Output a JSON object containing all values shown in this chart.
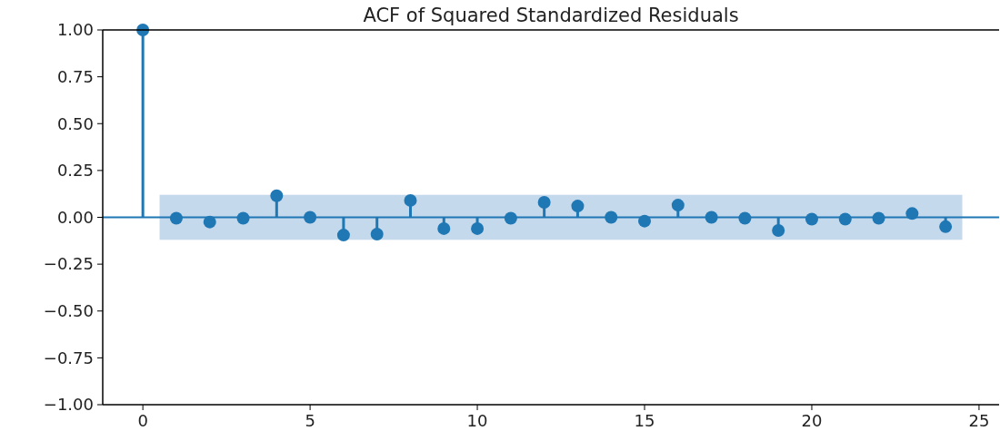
{
  "chart_data": {
    "type": "lollipop",
    "title": "ACF of Squared Standardized Residuals",
    "x": [
      0,
      1,
      2,
      3,
      4,
      5,
      6,
      7,
      8,
      9,
      10,
      11,
      12,
      13,
      14,
      15,
      16,
      17,
      18,
      19,
      20,
      21,
      22,
      23,
      24
    ],
    "values": [
      1.0,
      -0.005,
      -0.025,
      -0.005,
      0.115,
      0.0,
      -0.095,
      -0.09,
      0.09,
      -0.06,
      -0.06,
      -0.005,
      0.08,
      0.06,
      0.0,
      -0.02,
      0.065,
      0.0,
      -0.005,
      -0.07,
      -0.01,
      -0.01,
      -0.005,
      0.02,
      -0.05
    ],
    "color": "#1f77b4",
    "xlim": [
      -1.2,
      25.6
    ],
    "xticks": [
      0,
      5,
      10,
      15,
      20,
      25
    ],
    "ylim": [
      -1.0,
      1.0
    ],
    "yticks": [
      {
        "value": -1,
        "label": "−1.00"
      },
      {
        "value": -0.75,
        "label": "−0.75"
      },
      {
        "value": -0.5,
        "label": "−0.50"
      },
      {
        "value": -0.25,
        "label": "−0.25"
      },
      {
        "value": 0,
        "label": "0.00"
      },
      {
        "value": 0.25,
        "label": "0.25"
      },
      {
        "value": 0.5,
        "label": "0.50"
      },
      {
        "value": 0.75,
        "label": "0.75"
      },
      {
        "value": 1,
        "label": "1.00"
      }
    ],
    "ref_lines": [
      {
        "axis": "y",
        "value": 0,
        "color": "#1f77b4"
      }
    ],
    "bands": [
      {
        "axis": "y",
        "from": -0.12,
        "to": 0.12,
        "color": "#c5d9ec"
      }
    ],
    "marker": "circle"
  }
}
